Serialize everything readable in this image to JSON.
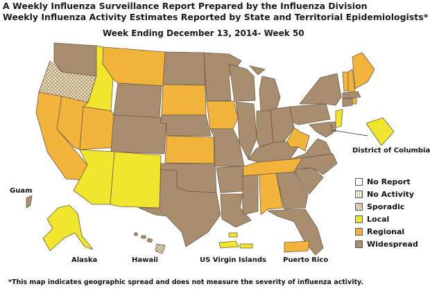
{
  "header": {
    "title_line1": "A Weekly Influenza Surveillance Report Prepared by the Influenza Division",
    "title_line2": "Weekly Influenza Activity Estimates Reported by State and Territorial Epidemiologists*",
    "subtitle": "Week Ending December 13, 2014- Week 50"
  },
  "colors": {
    "no_report": "#ffffff",
    "no_activity": "#f6efd9",
    "sporadic": "#e9dcb8",
    "local": "#f0e62c",
    "regional": "#f2b43a",
    "widespread": "#a88e6e",
    "border": "#6b5a44"
  },
  "legend": [
    {
      "label": "No Report",
      "level": "no_report"
    },
    {
      "label": "No Activity",
      "level": "no_activity"
    },
    {
      "label": "Sporadic",
      "level": "sporadic"
    },
    {
      "label": "Local",
      "level": "local"
    },
    {
      "label": "Regional",
      "level": "regional"
    },
    {
      "label": "Widespread",
      "level": "widespread"
    }
  ],
  "region_labels": {
    "dc": "District of Columbia",
    "guam": "Guam",
    "alaska": "Alaska",
    "hawaii": "Hawaii",
    "usvi": "US Virgin Islands",
    "pr": "Puerto Rico"
  },
  "footnote": "*This map indicates geographic spread and does not measure the severity of influenza activity."
}
